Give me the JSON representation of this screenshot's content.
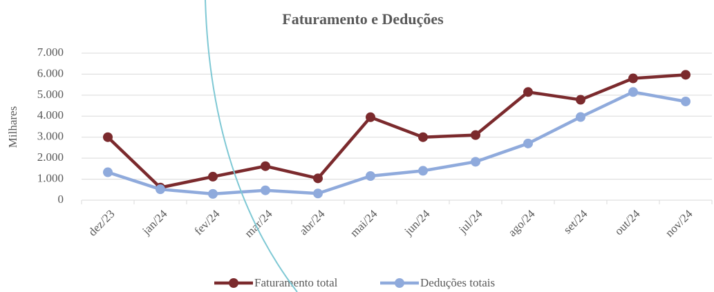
{
  "chart_data": {
    "type": "line",
    "title": "Faturamento e Deduções",
    "y_label": "Milhares",
    "categories": [
      "dez/23",
      "jan/24",
      "fev/24",
      "mar/24",
      "abr/24",
      "mai/24",
      "jun/24",
      "jul/24",
      "ago/24",
      "set/24",
      "out/24",
      "nov/24"
    ],
    "series": [
      {
        "name": "Faturamento total",
        "color": "#7b2a2d",
        "values": [
          3000,
          600,
          1120,
          1620,
          1040,
          3950,
          3000,
          3100,
          5150,
          4780,
          5800,
          5970
        ]
      },
      {
        "name": "Deduções totais",
        "color": "#8faadc",
        "values": [
          1330,
          520,
          300,
          470,
          320,
          1150,
          1400,
          1830,
          2700,
          3960,
          5150,
          4700
        ]
      }
    ],
    "ylim": [
      0,
      7000
    ],
    "yticks": [
      0,
      {
        "value": 1000,
        "label": "1.000"
      },
      {
        "value": 2000,
        "label": "2.000"
      },
      {
        "value": 3000,
        "label": "3.000"
      },
      {
        "value": 4000,
        "label": "4.000"
      },
      {
        "value": 5000,
        "label": "5.000"
      },
      {
        "value": 6000,
        "label": "6.000"
      },
      {
        "value": 7000,
        "label": "7.000"
      }
    ],
    "grid": true,
    "legend": "bottom"
  }
}
